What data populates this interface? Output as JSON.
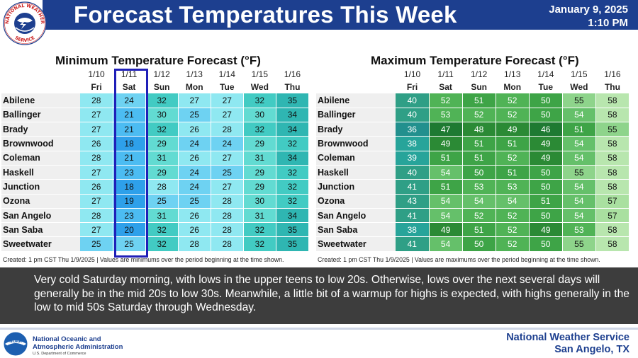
{
  "header": {
    "title": "Forecast Temperatures This Week",
    "date": "January 9, 2025",
    "time": "1:10 PM",
    "logo_text": "NATIONAL WEATHER SERVICE"
  },
  "min_table": {
    "title": "Minimum Temperature Forecast (°F)",
    "dates": [
      "1/10",
      "1/11",
      "1/12",
      "1/13",
      "1/14",
      "1/15",
      "1/16"
    ],
    "days": [
      "Fri",
      "Sat",
      "Sun",
      "Mon",
      "Tue",
      "Wed",
      "Thu"
    ],
    "rows": [
      {
        "loc": "Abilene",
        "vals": [
          "28",
          "24",
          "32",
          "27",
          "27",
          "32",
          "35"
        ]
      },
      {
        "loc": "Ballinger",
        "vals": [
          "27",
          "21",
          "30",
          "25",
          "27",
          "30",
          "34"
        ]
      },
      {
        "loc": "Brady",
        "vals": [
          "27",
          "21",
          "32",
          "26",
          "28",
          "32",
          "34"
        ]
      },
      {
        "loc": "Brownwood",
        "vals": [
          "26",
          "18",
          "29",
          "24",
          "24",
          "29",
          "32"
        ]
      },
      {
        "loc": "Coleman",
        "vals": [
          "28",
          "21",
          "31",
          "26",
          "27",
          "31",
          "34"
        ]
      },
      {
        "loc": "Haskell",
        "vals": [
          "27",
          "23",
          "29",
          "24",
          "25",
          "29",
          "32"
        ]
      },
      {
        "loc": "Junction",
        "vals": [
          "26",
          "18",
          "28",
          "24",
          "27",
          "29",
          "32"
        ]
      },
      {
        "loc": "Ozona",
        "vals": [
          "27",
          "19",
          "25",
          "25",
          "28",
          "30",
          "32"
        ]
      },
      {
        "loc": "San Angelo",
        "vals": [
          "28",
          "23",
          "31",
          "26",
          "28",
          "31",
          "34"
        ]
      },
      {
        "loc": "San Saba",
        "vals": [
          "27",
          "20",
          "32",
          "26",
          "28",
          "32",
          "35"
        ]
      },
      {
        "loc": "Sweetwater",
        "vals": [
          "25",
          "25",
          "32",
          "28",
          "28",
          "32",
          "35"
        ]
      }
    ],
    "footnote": "Created: 1 pm CST Thu 1/9/2025  |  Values are minimums over the period beginning at the time shown."
  },
  "max_table": {
    "title": "Maximum Temperature Forecast (°F)",
    "dates": [
      "1/10",
      "1/11",
      "1/12",
      "1/13",
      "1/14",
      "1/15",
      "1/16"
    ],
    "days": [
      "Fri",
      "Sat",
      "Sun",
      "Mon",
      "Tue",
      "Wed",
      "Thu"
    ],
    "rows": [
      {
        "loc": "Abilene",
        "vals": [
          "40",
          "52",
          "51",
          "52",
          "50",
          "55",
          "58"
        ]
      },
      {
        "loc": "Ballinger",
        "vals": [
          "40",
          "53",
          "52",
          "52",
          "50",
          "54",
          "58"
        ]
      },
      {
        "loc": "Brady",
        "vals": [
          "36",
          "47",
          "48",
          "49",
          "46",
          "51",
          "55"
        ]
      },
      {
        "loc": "Brownwood",
        "vals": [
          "38",
          "49",
          "51",
          "51",
          "49",
          "54",
          "58"
        ]
      },
      {
        "loc": "Coleman",
        "vals": [
          "39",
          "51",
          "51",
          "52",
          "49",
          "54",
          "58"
        ]
      },
      {
        "loc": "Haskell",
        "vals": [
          "40",
          "54",
          "50",
          "51",
          "50",
          "55",
          "58"
        ]
      },
      {
        "loc": "Junction",
        "vals": [
          "41",
          "51",
          "53",
          "53",
          "50",
          "54",
          "58"
        ]
      },
      {
        "loc": "Ozona",
        "vals": [
          "43",
          "54",
          "54",
          "54",
          "51",
          "54",
          "57"
        ]
      },
      {
        "loc": "San Angelo",
        "vals": [
          "41",
          "54",
          "52",
          "52",
          "50",
          "54",
          "57"
        ]
      },
      {
        "loc": "San Saba",
        "vals": [
          "38",
          "49",
          "51",
          "52",
          "49",
          "53",
          "58"
        ]
      },
      {
        "loc": "Sweetwater",
        "vals": [
          "41",
          "54",
          "50",
          "52",
          "50",
          "55",
          "58"
        ]
      }
    ],
    "footnote": "Created: 1 pm CST Thu 1/9/2025  |  Values are maximums over the period beginning at the time shown."
  },
  "summary": "Very cold Saturday morning, with lows in the upper teens to low 20s. Otherwise, lows over the next several days will generally be in the mid 20s to low 30s. Meanwhile, a little bit of a warmup for highs is expected, with highs generally in the low to mid 50s Saturday through Wednesday.",
  "footer": {
    "noaa_name_1": "National Oceanic and",
    "noaa_name_2": "Atmospheric Administration",
    "noaa_dept": "U.S. Department of Commerce",
    "noaa_logo_text": "NOAA",
    "office_1": "National Weather Service",
    "office_2": "San Angelo, TX"
  },
  "colors": {
    "header_blue": "#1d3f8f",
    "summary_bg": "#3d3d3d",
    "highlight_box": "#1f1fb8"
  }
}
